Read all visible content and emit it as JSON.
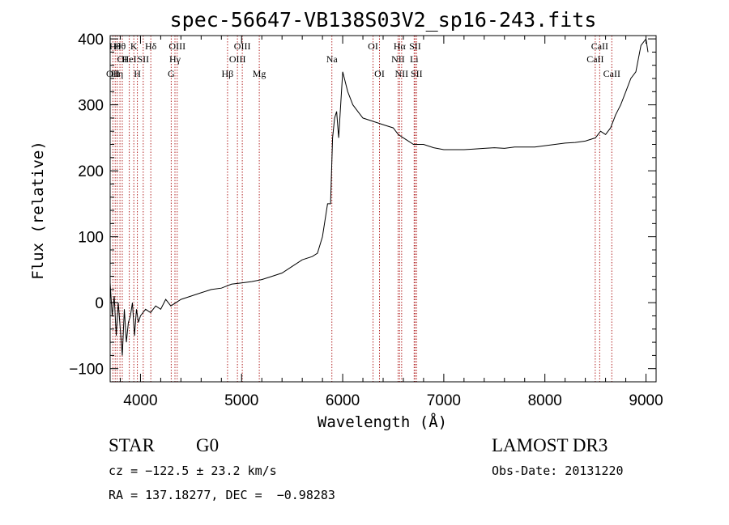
{
  "chart_data": {
    "type": "line",
    "title": "spec-56647-VB138S03V2_sp16-243.fits",
    "xlabel": "Wavelength (Å)",
    "ylabel": "Flux (relative)",
    "xlim": [
      3700,
      9100
    ],
    "ylim": [
      -120,
      405
    ],
    "xticks": [
      4000,
      5000,
      6000,
      7000,
      8000,
      9000
    ],
    "yticks": [
      -100,
      0,
      100,
      200,
      300,
      400
    ],
    "grid": false,
    "series": [
      {
        "color": "#000000",
        "x": [
          3700,
          3720,
          3740,
          3760,
          3780,
          3800,
          3820,
          3840,
          3860,
          3880,
          3900,
          3920,
          3940,
          3960,
          3980,
          4000,
          4050,
          4100,
          4150,
          4200,
          4250,
          4300,
          4350,
          4400,
          4500,
          4600,
          4700,
          4800,
          4900,
          5000,
          5100,
          5200,
          5300,
          5400,
          5500,
          5600,
          5700,
          5750,
          5800,
          5850,
          5880,
          5900,
          5920,
          5940,
          5960,
          6000,
          6050,
          6100,
          6150,
          6200,
          6300,
          6400,
          6500,
          6550,
          6600,
          6650,
          6700,
          6750,
          6800,
          6900,
          7000,
          7100,
          7200,
          7300,
          7400,
          7500,
          7600,
          7700,
          7800,
          7900,
          8000,
          8100,
          8200,
          8300,
          8400,
          8500,
          8550,
          8600,
          8650,
          8700,
          8750,
          8800,
          8850,
          8900,
          8950,
          9000,
          9020
        ],
        "y": [
          30,
          -20,
          10,
          -50,
          0,
          -40,
          -80,
          -10,
          -60,
          -30,
          -20,
          0,
          -50,
          -10,
          -30,
          -20,
          -10,
          -15,
          -5,
          -10,
          5,
          -5,
          0,
          5,
          10,
          15,
          20,
          22,
          28,
          30,
          32,
          35,
          40,
          45,
          55,
          65,
          70,
          75,
          100,
          150,
          150,
          250,
          280,
          290,
          250,
          350,
          320,
          300,
          290,
          280,
          275,
          270,
          265,
          255,
          250,
          245,
          240,
          240,
          240,
          235,
          232,
          232,
          232,
          233,
          234,
          235,
          234,
          236,
          236,
          236,
          238,
          240,
          242,
          243,
          245,
          250,
          260,
          255,
          265,
          285,
          300,
          320,
          340,
          350,
          390,
          400,
          380
        ]
      }
    ],
    "spectral_lines": [
      {
        "w": 3727,
        "label": "OII",
        "row": 3
      },
      {
        "w": 3750,
        "label": "Hθ",
        "row": 1
      },
      {
        "w": 3770,
        "label": "Hη",
        "row": 3
      },
      {
        "w": 3797,
        "label": "Hθ",
        "row": 1
      },
      {
        "w": 3820,
        "label": "OI",
        "row": 2
      },
      {
        "w": 3889,
        "label": "HeI",
        "row": 2
      },
      {
        "w": 3934,
        "label": "K",
        "row": 1
      },
      {
        "w": 3969,
        "label": "H",
        "row": 3
      },
      {
        "w": 4027,
        "label": "SII",
        "row": 2
      },
      {
        "w": 4102,
        "label": "Hδ",
        "row": 1
      },
      {
        "w": 4304,
        "label": "G",
        "row": 3
      },
      {
        "w": 4341,
        "label": "Hγ",
        "row": 2
      },
      {
        "w": 4363,
        "label": "OIII",
        "row": 1
      },
      {
        "w": 4861,
        "label": "Hβ",
        "row": 3
      },
      {
        "w": 4959,
        "label": "OIII",
        "row": 2
      },
      {
        "w": 5007,
        "label": "OIII",
        "row": 1
      },
      {
        "w": 5175,
        "label": "Mg",
        "row": 3
      },
      {
        "w": 5893,
        "label": "Na",
        "row": 2
      },
      {
        "w": 6300,
        "label": "OI",
        "row": 1
      },
      {
        "w": 6364,
        "label": "OI",
        "row": 3
      },
      {
        "w": 6548,
        "label": "NII",
        "row": 2
      },
      {
        "w": 6563,
        "label": "Hα",
        "row": 1
      },
      {
        "w": 6583,
        "label": "NII",
        "row": 3
      },
      {
        "w": 6707,
        "label": "Li",
        "row": 2
      },
      {
        "w": 6716,
        "label": "SII",
        "row": 1
      },
      {
        "w": 6731,
        "label": "SII",
        "row": 3
      },
      {
        "w": 8498,
        "label": "CaII",
        "row": 2
      },
      {
        "w": 8542,
        "label": "CaII",
        "row": 1
      },
      {
        "w": 8662,
        "label": "CaII",
        "row": 3
      }
    ]
  },
  "info": {
    "object_class": "STAR",
    "subclass": "G0",
    "survey": "LAMOST DR3",
    "cz": "cz = −122.5 ± 23.2 km/s",
    "obs_date": "Obs-Date: 20131220",
    "coords": "RA = 137.18277, DEC =  −0.98283"
  }
}
